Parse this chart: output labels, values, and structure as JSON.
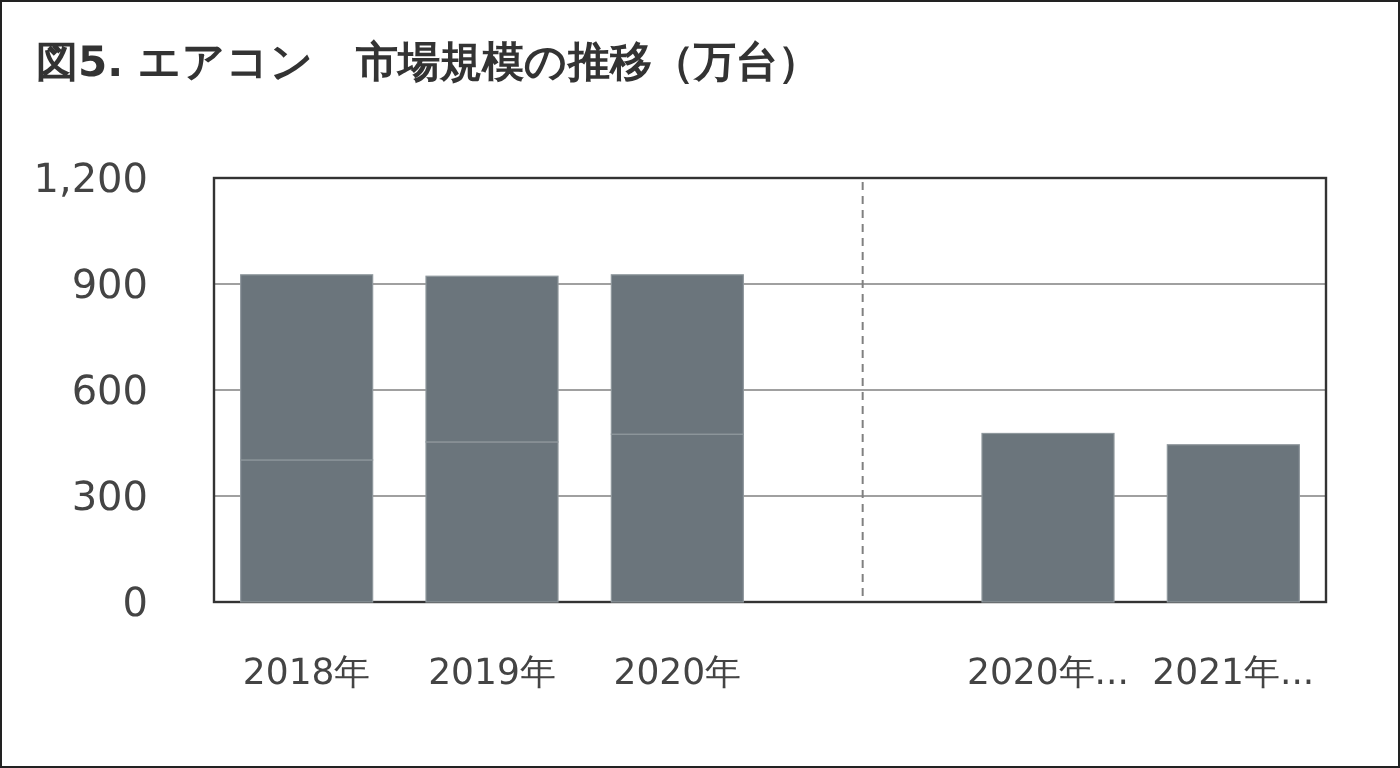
{
  "chart_data": {
    "type": "bar",
    "title": "図5. エアコン　市場規模の推移（万台）",
    "stacked": true,
    "categories": [
      "2018年",
      "2019年",
      "2020年",
      null,
      "2020年...",
      "2021年..."
    ],
    "series": [
      {
        "color": "#6b757c",
        "values": [
          402,
          453,
          475,
          null,
          477,
          445
        ]
      },
      {
        "color": "#6b757c",
        "values": [
          524,
          469,
          451,
          null,
          null,
          null
        ]
      }
    ],
    "ylim": [
      0,
      1200
    ],
    "yticks": [
      0,
      300,
      600,
      900,
      {
        "value": 1200,
        "label": "1,200"
      }
    ],
    "grid": "y"
  }
}
